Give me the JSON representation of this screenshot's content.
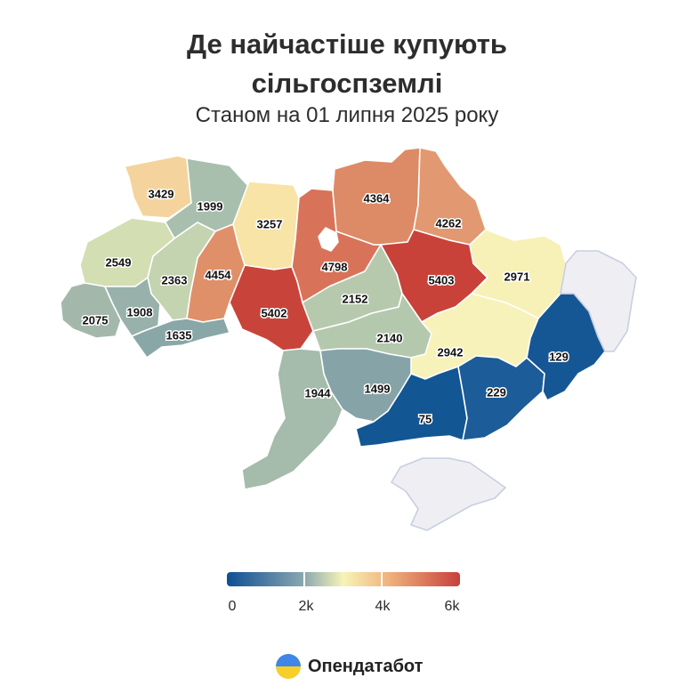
{
  "title_line1": "Де найчастіше купують",
  "title_line2": "сільгоспземлі",
  "subtitle": "Станом на 01 липня 2025 року",
  "map": {
    "regions": [
      {
        "id": "volyn",
        "value": 3429,
        "color": "#f4d49c"
      },
      {
        "id": "rivne",
        "value": 1999,
        "color": "#a9bfae"
      },
      {
        "id": "zhytomyr",
        "value": 3257,
        "color": "#f7e4a6"
      },
      {
        "id": "kyiv",
        "value": 4798,
        "color": "#d8735a"
      },
      {
        "id": "chernihiv",
        "value": 4364,
        "color": "#dd8b66"
      },
      {
        "id": "sumy",
        "value": 4262,
        "color": "#e29870"
      },
      {
        "id": "lviv",
        "value": 2549,
        "color": "#d3deb2"
      },
      {
        "id": "ternopil",
        "value": 2363,
        "color": "#c4d3b0"
      },
      {
        "id": "khmelnytskyi",
        "value": 4454,
        "color": "#df9068"
      },
      {
        "id": "vinnytsia",
        "value": 5402,
        "color": "#c8443a"
      },
      {
        "id": "cherkasy",
        "value": 2152,
        "color": "#b6c9ad"
      },
      {
        "id": "poltava",
        "value": 5403,
        "color": "#c8423a"
      },
      {
        "id": "kharkiv",
        "value": 2971,
        "color": "#f7f1b8"
      },
      {
        "id": "zakarpattia",
        "value": 2075,
        "color": "#a3b8ab"
      },
      {
        "id": "ivano-frankivsk",
        "value": 1908,
        "color": "#98b1ab"
      },
      {
        "id": "chernivtsi",
        "value": 1635,
        "color": "#8aa7a8"
      },
      {
        "id": "kirovohrad",
        "value": 2140,
        "color": "#b4c8ad"
      },
      {
        "id": "dnipropetrovsk",
        "value": 2942,
        "color": "#f7f2b9"
      },
      {
        "id": "odesa",
        "value": 1944,
        "color": "#a5bbab"
      },
      {
        "id": "mykolaiv",
        "value": 1499,
        "color": "#86a4a8"
      },
      {
        "id": "kherson",
        "value": 75,
        "color": "#135694"
      },
      {
        "id": "zaporizhzhia",
        "value": 229,
        "color": "#1c5c98"
      },
      {
        "id": "donetsk",
        "value": 129,
        "color": "#155795"
      },
      {
        "id": "luhansk",
        "value": null,
        "color": "#efeff3"
      },
      {
        "id": "crimea",
        "value": null,
        "color": "#efeff3"
      }
    ]
  },
  "legend": {
    "ticks": [
      "0",
      "2k",
      "4k",
      "6k"
    ],
    "colors": [
      "#0e4f94",
      "#8aa7b0",
      "#f7f4b6",
      "#efb07c",
      "#c8403a"
    ]
  },
  "brand": {
    "name": "Опендатабот"
  }
}
